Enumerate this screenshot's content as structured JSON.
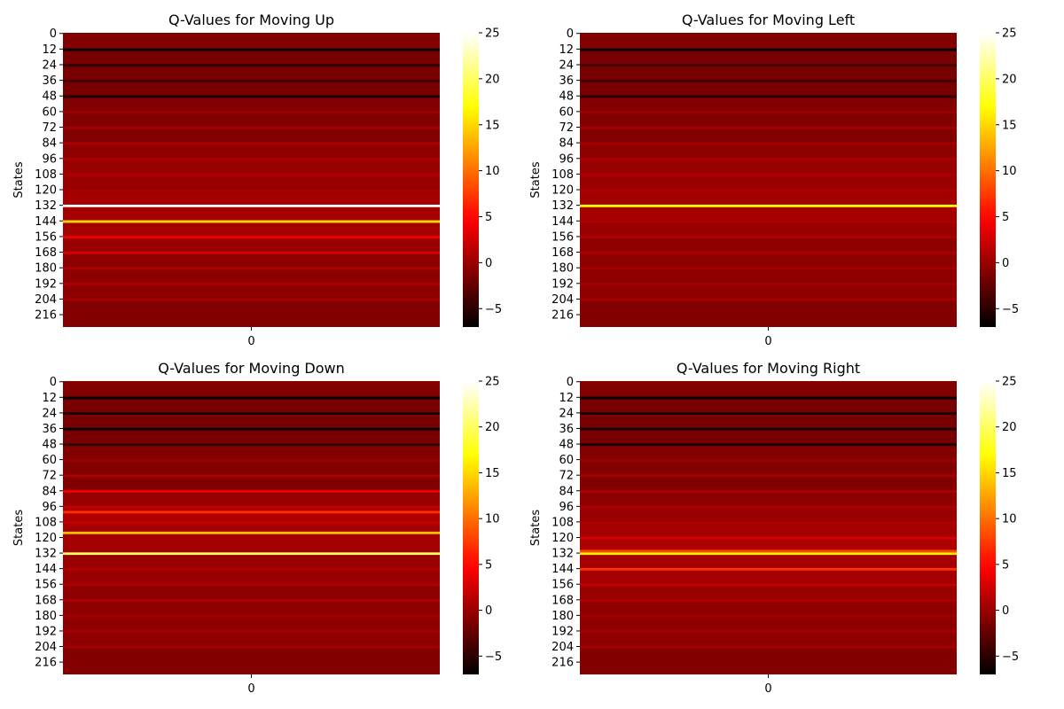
{
  "colorbar": {
    "min": -7,
    "max": 25,
    "ticks": [
      -5,
      0,
      5,
      10,
      15,
      20,
      25
    ]
  },
  "chart_data": [
    {
      "type": "heatmap",
      "title": "Q-Values for Moving Up",
      "ylabel": "States",
      "xticks": [
        "0"
      ],
      "yticks": [
        0,
        12,
        24,
        36,
        48,
        60,
        72,
        84,
        96,
        108,
        120,
        132,
        144,
        156,
        168,
        180,
        192,
        204,
        216
      ],
      "rows": [
        [
          0,
          11,
          -1
        ],
        [
          12,
          13,
          -7
        ],
        [
          14,
          23,
          -1.5
        ],
        [
          24,
          25,
          -5
        ],
        [
          26,
          35,
          -1.5
        ],
        [
          36,
          37,
          -4
        ],
        [
          38,
          47,
          -1.5
        ],
        [
          48,
          49,
          -6
        ],
        [
          50,
          59,
          -1
        ],
        [
          60,
          61,
          0
        ],
        [
          62,
          71,
          -1
        ],
        [
          72,
          73,
          0.5
        ],
        [
          74,
          83,
          -1
        ],
        [
          84,
          85,
          1
        ],
        [
          86,
          95,
          -0.5
        ],
        [
          96,
          97,
          1
        ],
        [
          98,
          107,
          0
        ],
        [
          108,
          109,
          1
        ],
        [
          110,
          119,
          0
        ],
        [
          120,
          121,
          0.5
        ],
        [
          122,
          131,
          0.5
        ],
        [
          132,
          133,
          25
        ],
        [
          134,
          143,
          0.5
        ],
        [
          144,
          145,
          15
        ],
        [
          146,
          155,
          0.5
        ],
        [
          156,
          157,
          4
        ],
        [
          158,
          167,
          0
        ],
        [
          168,
          169,
          3
        ],
        [
          170,
          179,
          -0.5
        ],
        [
          180,
          181,
          1
        ],
        [
          182,
          191,
          -0.5
        ],
        [
          192,
          193,
          1
        ],
        [
          194,
          203,
          -0.5
        ],
        [
          204,
          205,
          0.5
        ],
        [
          206,
          225,
          -1
        ]
      ]
    },
    {
      "type": "heatmap",
      "title": "Q-Values for Moving Left",
      "ylabel": "States",
      "xticks": [
        "0"
      ],
      "yticks": [
        0,
        12,
        24,
        36,
        48,
        60,
        72,
        84,
        96,
        108,
        120,
        132,
        144,
        156,
        168,
        180,
        192,
        204,
        216
      ],
      "rows": [
        [
          0,
          11,
          -1
        ],
        [
          12,
          13,
          -7
        ],
        [
          14,
          23,
          -1.5
        ],
        [
          24,
          25,
          -4
        ],
        [
          26,
          35,
          -1.5
        ],
        [
          36,
          37,
          -4
        ],
        [
          38,
          47,
          -1.5
        ],
        [
          48,
          49,
          -5
        ],
        [
          50,
          59,
          -1
        ],
        [
          60,
          61,
          0
        ],
        [
          62,
          71,
          -1
        ],
        [
          72,
          73,
          0.5
        ],
        [
          74,
          83,
          -1
        ],
        [
          84,
          85,
          0.5
        ],
        [
          86,
          95,
          -0.5
        ],
        [
          96,
          97,
          1
        ],
        [
          98,
          107,
          0
        ],
        [
          108,
          109,
          1
        ],
        [
          110,
          119,
          0
        ],
        [
          120,
          121,
          1
        ],
        [
          122,
          131,
          0.5
        ],
        [
          132,
          133,
          17
        ],
        [
          134,
          143,
          0.5
        ],
        [
          144,
          145,
          1
        ],
        [
          146,
          155,
          0
        ],
        [
          156,
          157,
          1
        ],
        [
          158,
          167,
          -0.5
        ],
        [
          168,
          169,
          1
        ],
        [
          170,
          179,
          -0.5
        ],
        [
          180,
          181,
          0.5
        ],
        [
          182,
          191,
          -0.5
        ],
        [
          192,
          193,
          0.5
        ],
        [
          194,
          203,
          -0.5
        ],
        [
          204,
          205,
          0.5
        ],
        [
          206,
          225,
          -1
        ]
      ]
    },
    {
      "type": "heatmap",
      "title": "Q-Values for Moving Down",
      "ylabel": "States",
      "xticks": [
        "0"
      ],
      "yticks": [
        0,
        12,
        24,
        36,
        48,
        60,
        72,
        84,
        96,
        108,
        120,
        132,
        144,
        156,
        168,
        180,
        192,
        204,
        216
      ],
      "rows": [
        [
          0,
          11,
          -1
        ],
        [
          12,
          13,
          -7
        ],
        [
          14,
          23,
          -1.5
        ],
        [
          24,
          25,
          -6
        ],
        [
          26,
          35,
          -1.5
        ],
        [
          36,
          37,
          -7
        ],
        [
          38,
          47,
          -1.5
        ],
        [
          48,
          49,
          -5
        ],
        [
          50,
          59,
          -1
        ],
        [
          60,
          61,
          0
        ],
        [
          62,
          71,
          -1
        ],
        [
          72,
          73,
          1
        ],
        [
          74,
          83,
          -1
        ],
        [
          84,
          85,
          4
        ],
        [
          86,
          95,
          0
        ],
        [
          96,
          97,
          2
        ],
        [
          98,
          99,
          1
        ],
        [
          100,
          101,
          7
        ],
        [
          102,
          107,
          1
        ],
        [
          108,
          109,
          2
        ],
        [
          110,
          115,
          0.5
        ],
        [
          116,
          117,
          14
        ],
        [
          118,
          131,
          0.5
        ],
        [
          132,
          133,
          20
        ],
        [
          134,
          143,
          0
        ],
        [
          144,
          145,
          1
        ],
        [
          146,
          155,
          0
        ],
        [
          156,
          157,
          1
        ],
        [
          158,
          167,
          -0.5
        ],
        [
          168,
          169,
          1
        ],
        [
          170,
          179,
          -0.5
        ],
        [
          180,
          181,
          0.5
        ],
        [
          182,
          191,
          -0.5
        ],
        [
          192,
          193,
          0.5
        ],
        [
          194,
          203,
          -0.5
        ],
        [
          204,
          205,
          0.5
        ],
        [
          206,
          225,
          -1
        ]
      ]
    },
    {
      "type": "heatmap",
      "title": "Q-Values for Moving Right",
      "ylabel": "States",
      "xticks": [
        "0"
      ],
      "yticks": [
        0,
        12,
        24,
        36,
        48,
        60,
        72,
        84,
        96,
        108,
        120,
        132,
        144,
        156,
        168,
        180,
        192,
        204,
        216
      ],
      "rows": [
        [
          0,
          11,
          -1
        ],
        [
          12,
          13,
          -7
        ],
        [
          14,
          23,
          -1.5
        ],
        [
          24,
          25,
          -6
        ],
        [
          26,
          35,
          -1.5
        ],
        [
          36,
          37,
          -6
        ],
        [
          38,
          47,
          -1.5
        ],
        [
          48,
          49,
          -6
        ],
        [
          50,
          59,
          -1
        ],
        [
          60,
          61,
          0
        ],
        [
          62,
          71,
          -1
        ],
        [
          72,
          73,
          0.5
        ],
        [
          74,
          83,
          -1
        ],
        [
          84,
          85,
          1
        ],
        [
          86,
          95,
          -0.5
        ],
        [
          96,
          97,
          1
        ],
        [
          98,
          107,
          0
        ],
        [
          108,
          109,
          1
        ],
        [
          110,
          119,
          0.5
        ],
        [
          120,
          121,
          3
        ],
        [
          122,
          129,
          1
        ],
        [
          130,
          131,
          8
        ],
        [
          132,
          133,
          16
        ],
        [
          134,
          143,
          0.5
        ],
        [
          144,
          145,
          7
        ],
        [
          146,
          155,
          0.5
        ],
        [
          156,
          157,
          2
        ],
        [
          158,
          167,
          0
        ],
        [
          168,
          169,
          1
        ],
        [
          170,
          179,
          -0.5
        ],
        [
          180,
          181,
          0.5
        ],
        [
          182,
          191,
          -0.5
        ],
        [
          192,
          193,
          0.5
        ],
        [
          194,
          203,
          -0.5
        ],
        [
          204,
          205,
          0.5
        ],
        [
          206,
          225,
          -1
        ]
      ]
    }
  ]
}
